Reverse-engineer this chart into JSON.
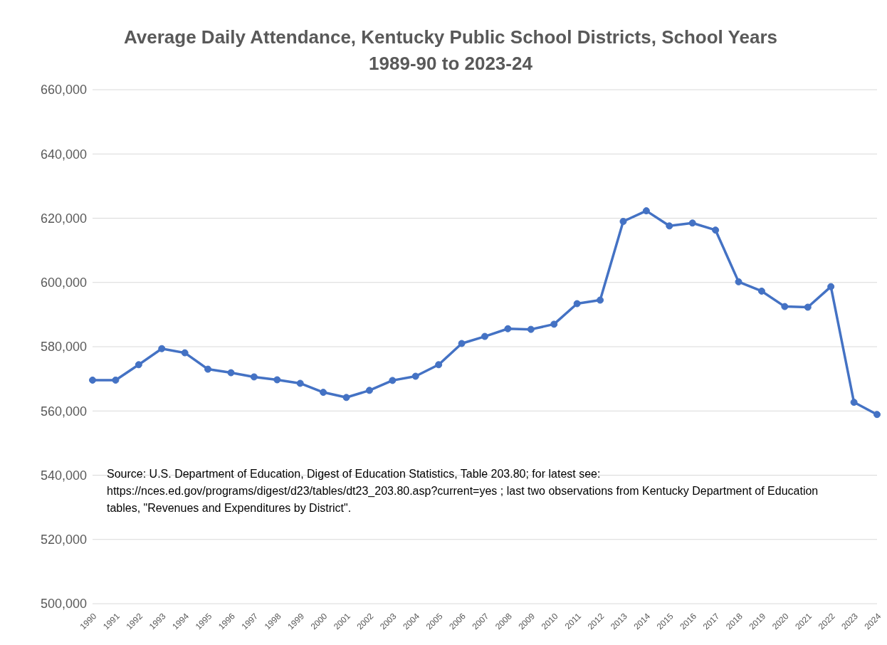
{
  "chart_data": {
    "type": "line",
    "title": "Average Daily Attendance, Kentucky Public School Districts, School Years 1989-90 to 2023-24",
    "categories": [
      "1990",
      "1991",
      "1992",
      "1993",
      "1994",
      "1995",
      "1996",
      "1997",
      "1998",
      "1999",
      "2000",
      "2001",
      "2002",
      "2003",
      "2004",
      "2005",
      "2006",
      "2007",
      "2008",
      "2009",
      "2010",
      "2011",
      "2012",
      "2013",
      "2014",
      "2015",
      "2016",
      "2017",
      "2018",
      "2019",
      "2020",
      "2021",
      "2022",
      "2023",
      "2024"
    ],
    "series": [
      {
        "color": "#4472c4",
        "values": [
          569600,
          569600,
          574400,
          579400,
          578100,
          573000,
          571900,
          570600,
          569700,
          568600,
          565800,
          564200,
          566400,
          569500,
          570800,
          574400,
          581000,
          583200,
          585600,
          585400,
          587000,
          593400,
          594500,
          619000,
          622300,
          617600,
          618500,
          616300,
          600200,
          597300,
          592500,
          592300,
          598700,
          562700,
          558900
        ]
      }
    ],
    "ylim": [
      500000,
      660000
    ],
    "yticks": [
      {
        "value": 500000,
        "label": "500,000"
      },
      {
        "value": 520000,
        "label": "520,000"
      },
      {
        "value": 540000,
        "label": "540,000"
      },
      {
        "value": 560000,
        "label": "560,000"
      },
      {
        "value": 580000,
        "label": "580,000"
      },
      {
        "value": 600000,
        "label": "600,000"
      },
      {
        "value": 620000,
        "label": "620,000"
      },
      {
        "value": 640000,
        "label": "640,000"
      },
      {
        "value": 660000,
        "label": "660,000"
      }
    ],
    "grid": "y",
    "marker": "circle",
    "line_style": "solid",
    "annotations": [
      "Source: U.S. Department of Education, Digest of Education Statistics, Table 203.80; for latest see: https://nces.ed.gov/programs/digest/d23/tables/dt23_203.80.asp?current=yes   ; last two observations from Kentucky Department of Education tables, \"Revenues and Expenditures by District\"."
    ]
  }
}
